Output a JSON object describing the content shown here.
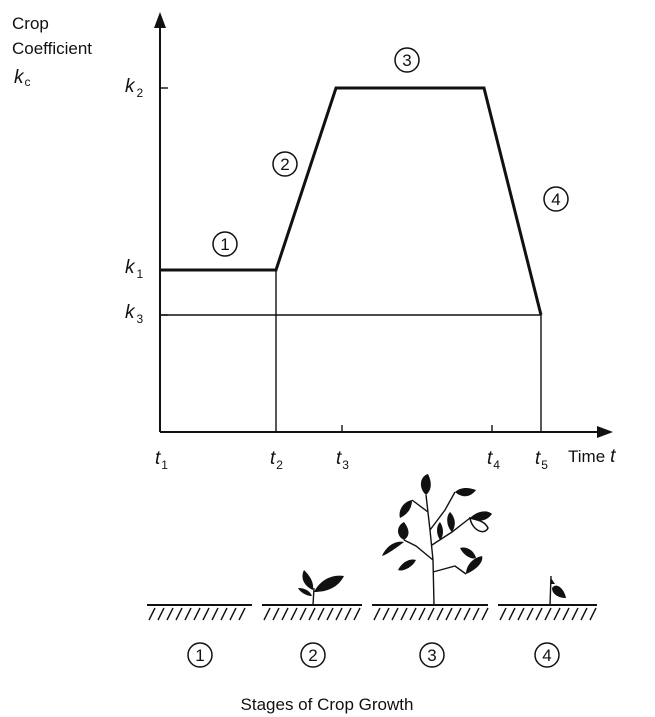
{
  "y_axis": {
    "label_lines": [
      "Crop",
      "Coefficient"
    ],
    "symbol": {
      "base": "k",
      "sub": "c"
    },
    "ticks": [
      {
        "base": "k",
        "sub": "2"
      },
      {
        "base": "k",
        "sub": "1"
      },
      {
        "base": "k",
        "sub": "3"
      }
    ]
  },
  "x_axis": {
    "label": {
      "text": "Time",
      "var": "t"
    },
    "ticks": [
      {
        "base": "t",
        "sub": "1"
      },
      {
        "base": "t",
        "sub": "2"
      },
      {
        "base": "t",
        "sub": "3"
      },
      {
        "base": "t",
        "sub": "4"
      },
      {
        "base": "t",
        "sub": "5"
      }
    ]
  },
  "curve_stages": [
    "1",
    "2",
    "3",
    "4"
  ],
  "growth_stages": [
    "1",
    "2",
    "3",
    "4"
  ],
  "caption": "Stages of Crop Growth"
}
